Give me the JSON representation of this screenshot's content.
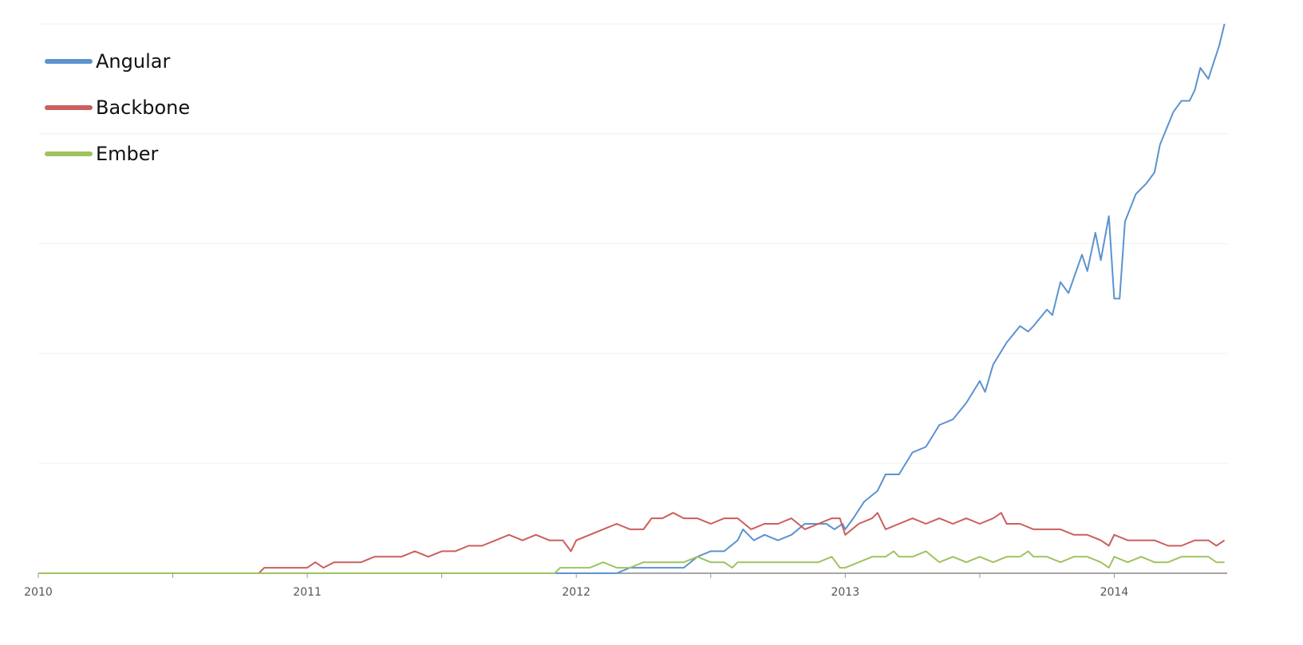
{
  "chart_data": {
    "type": "line",
    "title": "",
    "xlabel": "",
    "ylabel": "",
    "x_ticks": [
      "2010",
      "2011",
      "2012",
      "2013",
      "2014"
    ],
    "x_range": [
      2010.0,
      2014.42
    ],
    "ylim": [
      0,
      100
    ],
    "grid": true,
    "legend_placement": "top-left",
    "series": [
      {
        "name": "Angular",
        "color": "#5b93cf",
        "points": [
          [
            2010.0,
            0
          ],
          [
            2011.9,
            0
          ],
          [
            2012.15,
            0
          ],
          [
            2012.2,
            1
          ],
          [
            2012.3,
            1
          ],
          [
            2012.35,
            1
          ],
          [
            2012.4,
            1
          ],
          [
            2012.45,
            3
          ],
          [
            2012.5,
            4
          ],
          [
            2012.55,
            4
          ],
          [
            2012.6,
            6
          ],
          [
            2012.62,
            8
          ],
          [
            2012.66,
            6
          ],
          [
            2012.7,
            7
          ],
          [
            2012.75,
            6
          ],
          [
            2012.8,
            7
          ],
          [
            2012.85,
            9
          ],
          [
            2012.9,
            9
          ],
          [
            2012.93,
            9
          ],
          [
            2012.96,
            8
          ],
          [
            2012.99,
            9
          ],
          [
            2013.0,
            8
          ],
          [
            2013.03,
            10
          ],
          [
            2013.07,
            13
          ],
          [
            2013.12,
            15
          ],
          [
            2013.15,
            18
          ],
          [
            2013.2,
            18
          ],
          [
            2013.25,
            22
          ],
          [
            2013.3,
            23
          ],
          [
            2013.35,
            27
          ],
          [
            2013.4,
            28
          ],
          [
            2013.45,
            31
          ],
          [
            2013.5,
            35
          ],
          [
            2013.52,
            33
          ],
          [
            2013.55,
            38
          ],
          [
            2013.6,
            42
          ],
          [
            2013.65,
            45
          ],
          [
            2013.68,
            44
          ],
          [
            2013.7,
            45
          ],
          [
            2013.75,
            48
          ],
          [
            2013.77,
            47
          ],
          [
            2013.8,
            53
          ],
          [
            2013.83,
            51
          ],
          [
            2013.88,
            58
          ],
          [
            2013.9,
            55
          ],
          [
            2013.93,
            62
          ],
          [
            2013.95,
            57
          ],
          [
            2013.98,
            65
          ],
          [
            2014.0,
            50
          ],
          [
            2014.02,
            50
          ],
          [
            2014.04,
            64
          ],
          [
            2014.08,
            69
          ],
          [
            2014.12,
            71
          ],
          [
            2014.15,
            73
          ],
          [
            2014.17,
            78
          ],
          [
            2014.22,
            84
          ],
          [
            2014.25,
            86
          ],
          [
            2014.28,
            86
          ],
          [
            2014.3,
            88
          ],
          [
            2014.32,
            92
          ],
          [
            2014.35,
            90
          ],
          [
            2014.37,
            93
          ],
          [
            2014.39,
            96
          ],
          [
            2014.41,
            100
          ]
        ]
      },
      {
        "name": "Backbone",
        "color": "#cc5e5e",
        "points": [
          [
            2010.0,
            0
          ],
          [
            2010.82,
            0
          ],
          [
            2010.84,
            1
          ],
          [
            2011.0,
            1
          ],
          [
            2011.03,
            2
          ],
          [
            2011.06,
            1
          ],
          [
            2011.1,
            2
          ],
          [
            2011.15,
            2
          ],
          [
            2011.2,
            2
          ],
          [
            2011.25,
            3
          ],
          [
            2011.3,
            3
          ],
          [
            2011.35,
            3
          ],
          [
            2011.4,
            4
          ],
          [
            2011.45,
            3
          ],
          [
            2011.5,
            4
          ],
          [
            2011.55,
            4
          ],
          [
            2011.6,
            5
          ],
          [
            2011.65,
            5
          ],
          [
            2011.7,
            6
          ],
          [
            2011.75,
            7
          ],
          [
            2011.8,
            6
          ],
          [
            2011.85,
            7
          ],
          [
            2011.9,
            6
          ],
          [
            2011.95,
            6
          ],
          [
            2011.98,
            4
          ],
          [
            2012.0,
            6
          ],
          [
            2012.05,
            7
          ],
          [
            2012.1,
            8
          ],
          [
            2012.15,
            9
          ],
          [
            2012.2,
            8
          ],
          [
            2012.25,
            8
          ],
          [
            2012.28,
            10
          ],
          [
            2012.32,
            10
          ],
          [
            2012.36,
            11
          ],
          [
            2012.4,
            10
          ],
          [
            2012.45,
            10
          ],
          [
            2012.5,
            9
          ],
          [
            2012.55,
            10
          ],
          [
            2012.6,
            10
          ],
          [
            2012.65,
            8
          ],
          [
            2012.7,
            9
          ],
          [
            2012.75,
            9
          ],
          [
            2012.8,
            10
          ],
          [
            2012.85,
            8
          ],
          [
            2012.9,
            9
          ],
          [
            2012.95,
            10
          ],
          [
            2012.98,
            10
          ],
          [
            2013.0,
            7
          ],
          [
            2013.05,
            9
          ],
          [
            2013.1,
            10
          ],
          [
            2013.12,
            11
          ],
          [
            2013.15,
            8
          ],
          [
            2013.2,
            9
          ],
          [
            2013.25,
            10
          ],
          [
            2013.3,
            9
          ],
          [
            2013.35,
            10
          ],
          [
            2013.4,
            9
          ],
          [
            2013.45,
            10
          ],
          [
            2013.5,
            9
          ],
          [
            2013.55,
            10
          ],
          [
            2013.58,
            11
          ],
          [
            2013.6,
            9
          ],
          [
            2013.65,
            9
          ],
          [
            2013.7,
            8
          ],
          [
            2013.75,
            8
          ],
          [
            2013.8,
            8
          ],
          [
            2013.85,
            7
          ],
          [
            2013.9,
            7
          ],
          [
            2013.95,
            6
          ],
          [
            2013.98,
            5
          ],
          [
            2014.0,
            7
          ],
          [
            2014.05,
            6
          ],
          [
            2014.1,
            6
          ],
          [
            2014.15,
            6
          ],
          [
            2014.2,
            5
          ],
          [
            2014.25,
            5
          ],
          [
            2014.3,
            6
          ],
          [
            2014.35,
            6
          ],
          [
            2014.38,
            5
          ],
          [
            2014.41,
            6
          ]
        ]
      },
      {
        "name": "Ember",
        "color": "#a0c260",
        "points": [
          [
            2010.0,
            0
          ],
          [
            2011.92,
            0
          ],
          [
            2011.94,
            1
          ],
          [
            2012.0,
            1
          ],
          [
            2012.05,
            1
          ],
          [
            2012.1,
            2
          ],
          [
            2012.15,
            1
          ],
          [
            2012.2,
            1
          ],
          [
            2012.25,
            2
          ],
          [
            2012.3,
            2
          ],
          [
            2012.35,
            2
          ],
          [
            2012.4,
            2
          ],
          [
            2012.45,
            3
          ],
          [
            2012.5,
            2
          ],
          [
            2012.55,
            2
          ],
          [
            2012.58,
            1
          ],
          [
            2012.6,
            2
          ],
          [
            2012.65,
            2
          ],
          [
            2012.7,
            2
          ],
          [
            2012.75,
            2
          ],
          [
            2012.8,
            2
          ],
          [
            2012.85,
            2
          ],
          [
            2012.9,
            2
          ],
          [
            2012.95,
            3
          ],
          [
            2012.98,
            1
          ],
          [
            2013.0,
            1
          ],
          [
            2013.05,
            2
          ],
          [
            2013.1,
            3
          ],
          [
            2013.15,
            3
          ],
          [
            2013.18,
            4
          ],
          [
            2013.2,
            3
          ],
          [
            2013.25,
            3
          ],
          [
            2013.3,
            4
          ],
          [
            2013.35,
            2
          ],
          [
            2013.4,
            3
          ],
          [
            2013.45,
            2
          ],
          [
            2013.5,
            3
          ],
          [
            2013.55,
            2
          ],
          [
            2013.6,
            3
          ],
          [
            2013.65,
            3
          ],
          [
            2013.68,
            4
          ],
          [
            2013.7,
            3
          ],
          [
            2013.75,
            3
          ],
          [
            2013.8,
            2
          ],
          [
            2013.85,
            3
          ],
          [
            2013.9,
            3
          ],
          [
            2013.95,
            2
          ],
          [
            2013.98,
            1
          ],
          [
            2014.0,
            3
          ],
          [
            2014.05,
            2
          ],
          [
            2014.1,
            3
          ],
          [
            2014.15,
            2
          ],
          [
            2014.2,
            2
          ],
          [
            2014.25,
            3
          ],
          [
            2014.3,
            3
          ],
          [
            2014.35,
            3
          ],
          [
            2014.38,
            2
          ],
          [
            2014.41,
            2
          ]
        ]
      }
    ]
  }
}
